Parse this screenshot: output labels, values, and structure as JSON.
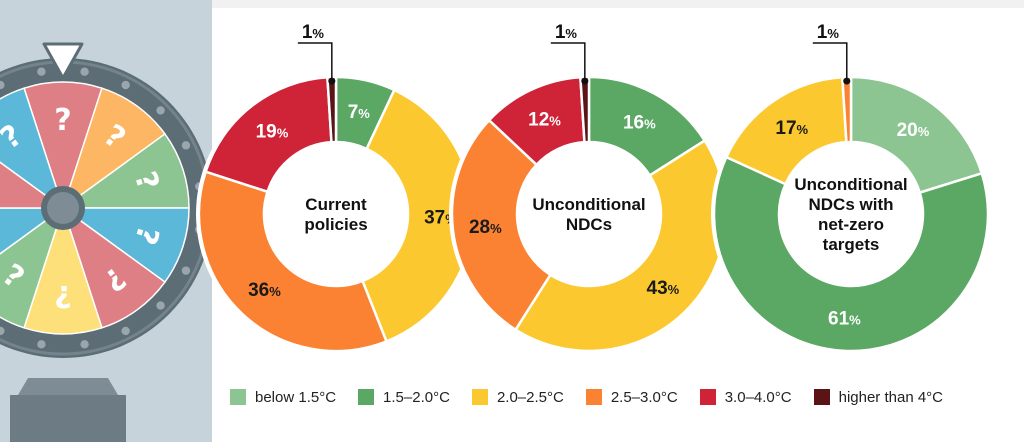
{
  "colors": {
    "below_1_5": "#8cc591",
    "c1_5_2_0": "#5ba764",
    "c2_0_2_5": "#fbc92f",
    "c2_5_3_0": "#fb8232",
    "c3_0_4_0": "#cf2338",
    "higher_4": "#5a1416",
    "wheel_bg": "#c7d3da",
    "wheel_rim": "#5d6d76"
  },
  "legend": [
    {
      "label": "below 1.5°C",
      "color": "#8cc591"
    },
    {
      "label": "1.5–2.0°C",
      "color": "#5ba764"
    },
    {
      "label": "2.0–2.5°C",
      "color": "#fbc92f"
    },
    {
      "label": "2.5–3.0°C",
      "color": "#fb8232"
    },
    {
      "label": "3.0–4.0°C",
      "color": "#cf2338"
    },
    {
      "label": "higher than 4°C",
      "color": "#5a1416"
    }
  ],
  "chart_data": [
    {
      "type": "donut",
      "center_label": [
        "Current",
        "policies"
      ],
      "slices": [
        {
          "category": "1.5–2.0°C",
          "value": 7,
          "label": "7"
        },
        {
          "category": "2.0–2.5°C",
          "value": 37,
          "label": "37"
        },
        {
          "category": "2.5–3.0°C",
          "value": 36,
          "label": "36"
        },
        {
          "category": "3.0–4.0°C",
          "value": 19,
          "label": "19"
        },
        {
          "category": "higher than 4°C",
          "value": 1,
          "label": "1"
        }
      ]
    },
    {
      "type": "donut",
      "center_label": [
        "Unconditional",
        "NDCs"
      ],
      "slices": [
        {
          "category": "1.5–2.0°C",
          "value": 16,
          "label": "16"
        },
        {
          "category": "2.0–2.5°C",
          "value": 43,
          "label": "43"
        },
        {
          "category": "2.5–3.0°C",
          "value": 28,
          "label": "28"
        },
        {
          "category": "3.0–4.0°C",
          "value": 12,
          "label": "12"
        },
        {
          "category": "higher than 4°C",
          "value": 1,
          "label": "1"
        }
      ]
    },
    {
      "type": "donut",
      "center_label": [
        "Unconditional",
        "NDCs with",
        "net-zero",
        "targets"
      ],
      "slices": [
        {
          "category": "below 1.5°C",
          "value": 20,
          "label": "20"
        },
        {
          "category": "1.5–2.0°C",
          "value": 61,
          "label": "61"
        },
        {
          "category": "2.0–2.5°C",
          "value": 17,
          "label": "17"
        },
        {
          "category": "2.5–3.0°C",
          "value": 1,
          "label": "1"
        }
      ]
    }
  ],
  "percent_sign": "%",
  "wheel": {
    "question_marks": [
      "?",
      "?",
      "?",
      "?",
      "?",
      "?",
      "¿",
      "¿",
      "?",
      "?"
    ]
  }
}
